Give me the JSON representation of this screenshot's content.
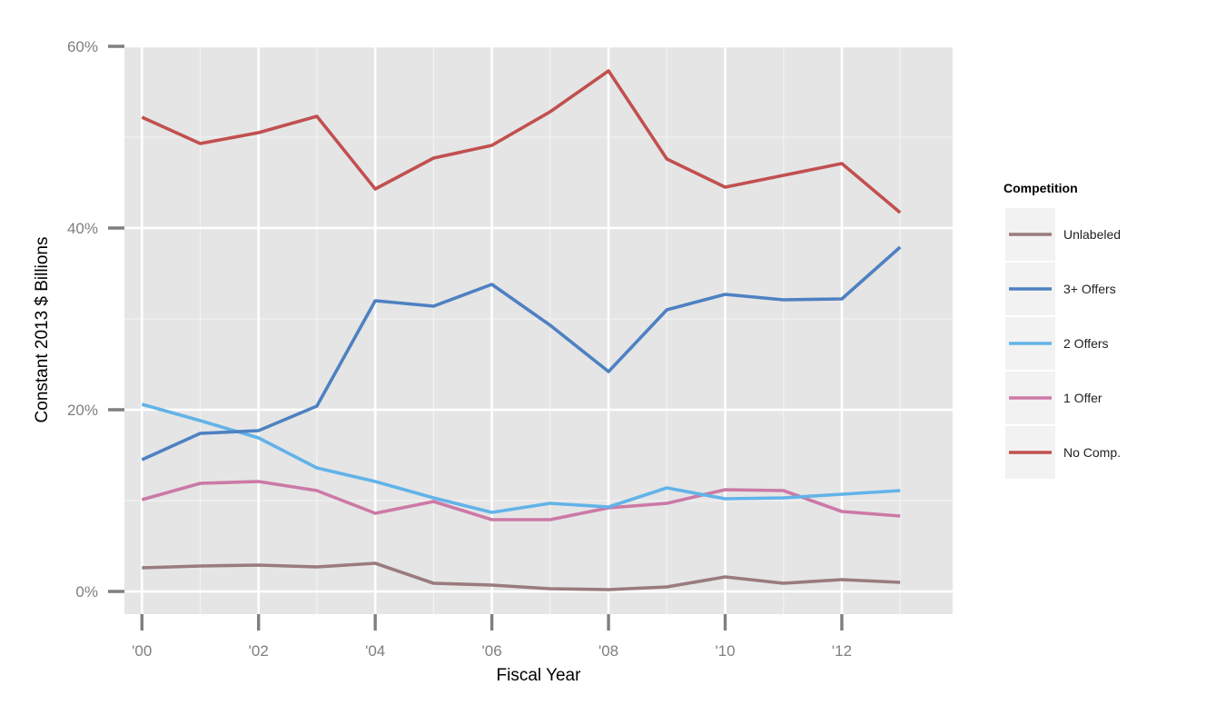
{
  "chart_data": {
    "type": "line",
    "xlabel": "Fiscal Year",
    "ylabel": "Constant 2013 $ Billions",
    "x": [
      2000,
      2001,
      2002,
      2003,
      2004,
      2005,
      2006,
      2007,
      2008,
      2009,
      2010,
      2011,
      2012,
      2013
    ],
    "xlim": [
      1999.7,
      2013.9
    ],
    "ylim": [
      -2.5,
      60
    ],
    "x_ticks": [
      2000,
      2002,
      2004,
      2006,
      2008,
      2010,
      2012
    ],
    "x_tick_labels": [
      "'00",
      "'02",
      "'04",
      "'06",
      "'08",
      "'10",
      "'12"
    ],
    "y_ticks": [
      0,
      20,
      40,
      60
    ],
    "y_tick_labels": [
      "0%",
      "20%",
      "40%",
      "60%"
    ],
    "grid": true,
    "legend": {
      "title": "Competition",
      "position": "right",
      "order": [
        "Unlabeled",
        "3+ Offers",
        "2 Offers",
        "1 Offer",
        "No Comp."
      ]
    },
    "series": [
      {
        "name": "Unlabeled",
        "color": "#9A7B7E",
        "values": [
          2.6,
          2.8,
          2.9,
          2.7,
          3.1,
          0.9,
          0.7,
          0.3,
          0.2,
          0.5,
          1.6,
          0.9,
          1.3,
          1.0
        ]
      },
      {
        "name": "3+ Offers",
        "color": "#4E81C2",
        "values": [
          14.5,
          17.4,
          17.7,
          20.4,
          32.0,
          31.4,
          33.8,
          29.3,
          24.2,
          31.0,
          32.7,
          32.1,
          32.2,
          37.9
        ]
      },
      {
        "name": "2 Offers",
        "color": "#62B3E8",
        "values": [
          20.6,
          18.8,
          16.9,
          13.6,
          12.1,
          10.3,
          8.7,
          9.7,
          9.3,
          11.4,
          10.2,
          10.3,
          10.7,
          11.1
        ]
      },
      {
        "name": "1 Offer",
        "color": "#CC79A7",
        "values": [
          10.1,
          11.9,
          12.1,
          11.1,
          8.6,
          9.9,
          7.9,
          7.9,
          9.2,
          9.7,
          11.2,
          11.1,
          8.8,
          8.3
        ]
      },
      {
        "name": "No Comp.",
        "color": "#C1504F",
        "values": [
          52.2,
          49.3,
          50.5,
          52.3,
          44.3,
          47.7,
          49.1,
          52.8,
          57.3,
          47.6,
          44.5,
          45.8,
          47.1,
          41.7
        ]
      }
    ]
  }
}
